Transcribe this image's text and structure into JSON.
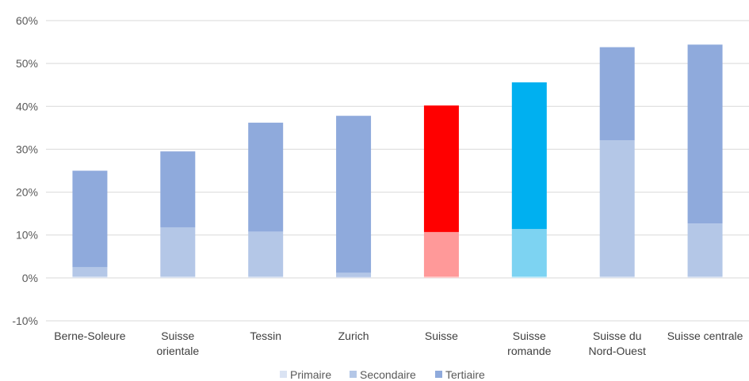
{
  "chart_data": {
    "type": "bar",
    "stacked": true,
    "categories": [
      [
        "Berne-Soleure"
      ],
      [
        "Suisse",
        "orientale"
      ],
      [
        "Tessin"
      ],
      [
        "Zurich"
      ],
      [
        "Suisse"
      ],
      [
        "Suisse",
        "romande"
      ],
      [
        "Suisse du",
        "Nord-Ouest"
      ],
      [
        "Suisse centrale"
      ]
    ],
    "series": [
      {
        "name": "Primaire",
        "values": [
          0.3,
          0.3,
          0.3,
          0.2,
          0.3,
          0.3,
          0.3,
          0.3
        ]
      },
      {
        "name": "Secondaire",
        "values": [
          2.2,
          11.5,
          10.5,
          1.0,
          10.4,
          11.1,
          31.8,
          12.4
        ]
      },
      {
        "name": "Tertiaire",
        "values": [
          22.5,
          17.7,
          25.4,
          36.6,
          29.5,
          34.2,
          21.7,
          41.7
        ]
      }
    ],
    "ylim": [
      -10,
      60
    ],
    "yticks": [
      -10,
      0,
      10,
      20,
      30,
      40,
      50,
      60
    ],
    "ytick_labels": [
      "-10%",
      "0%",
      "10%",
      "20%",
      "30%",
      "40%",
      "50%",
      "60%"
    ],
    "grid": true,
    "legend_position": "bottom",
    "colors": {
      "default": [
        "#dae3f3",
        "#b4c7e7",
        "#8faadc"
      ],
      "highlight_suisse": [
        "#ffcccc",
        "#ff9999",
        "#ff0000"
      ],
      "highlight_romande": [
        "#c2ecfb",
        "#7dd3f2",
        "#00b0f0"
      ],
      "legend": [
        "#dae3f3",
        "#b4c7e7",
        "#8faadc"
      ],
      "grid": "#d9d9d9"
    },
    "highlights": {
      "4": "highlight_suisse",
      "5": "highlight_romande"
    }
  }
}
